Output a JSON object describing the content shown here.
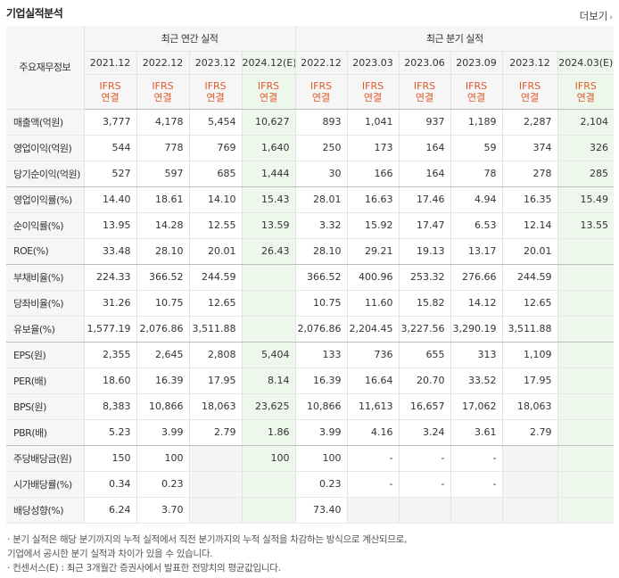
{
  "section_title": "기업실적분석",
  "more_label": "더보기",
  "corner_label": "주요재무정보",
  "groups": [
    "최근 연간 실적",
    "최근 분기 실적"
  ],
  "periods": [
    "2021.12",
    "2022.12",
    "2023.12",
    "2024.12(E)",
    "2022.12",
    "2023.03",
    "2023.06",
    "2023.09",
    "2023.12",
    "2024.03(E)"
  ],
  "ifrs_line1": "IFRS",
  "ifrs_line2": "연결",
  "rows": [
    {
      "label": "매출액(억원)",
      "values": [
        "3,777",
        "4,178",
        "5,454",
        "10,627",
        "893",
        "1,041",
        "937",
        "1,189",
        "2,287",
        "2,104"
      ]
    },
    {
      "label": "영업이익(억원)",
      "values": [
        "544",
        "778",
        "769",
        "1,640",
        "250",
        "173",
        "164",
        "59",
        "374",
        "326"
      ]
    },
    {
      "label": "당기순이익(억원)",
      "values": [
        "527",
        "597",
        "685",
        "1,444",
        "30",
        "166",
        "164",
        "78",
        "278",
        "285"
      ]
    },
    {
      "label": "영업이익률(%)",
      "values": [
        "14.40",
        "18.61",
        "14.10",
        "15.43",
        "28.01",
        "16.63",
        "17.46",
        "4.94",
        "16.35",
        "15.49"
      ]
    },
    {
      "label": "순이익률(%)",
      "values": [
        "13.95",
        "14.28",
        "12.55",
        "13.59",
        "3.32",
        "15.92",
        "17.47",
        "6.53",
        "12.14",
        "13.55"
      ]
    },
    {
      "label": "ROE(%)",
      "values": [
        "33.48",
        "28.10",
        "20.01",
        "26.43",
        "28.10",
        "29.21",
        "19.13",
        "13.17",
        "20.01",
        ""
      ]
    },
    {
      "label": "부채비율(%)",
      "values": [
        "224.33",
        "366.52",
        "244.59",
        "",
        "366.52",
        "400.96",
        "253.32",
        "276.66",
        "244.59",
        ""
      ]
    },
    {
      "label": "당좌비율(%)",
      "values": [
        "31.26",
        "10.75",
        "12.65",
        "",
        "10.75",
        "11.60",
        "15.82",
        "14.12",
        "12.65",
        ""
      ]
    },
    {
      "label": "유보율(%)",
      "values": [
        "1,577.19",
        "2,076.86",
        "3,511.88",
        "",
        "2,076.86",
        "2,204.45",
        "3,227.56",
        "3,290.19",
        "3,511.88",
        ""
      ]
    },
    {
      "label": "EPS(원)",
      "values": [
        "2,355",
        "2,645",
        "2,808",
        "5,404",
        "133",
        "736",
        "655",
        "313",
        "1,109",
        ""
      ]
    },
    {
      "label": "PER(배)",
      "values": [
        "18.60",
        "16.39",
        "17.95",
        "8.14",
        "16.39",
        "16.64",
        "20.70",
        "33.52",
        "17.95",
        ""
      ]
    },
    {
      "label": "BPS(원)",
      "values": [
        "8,383",
        "10,866",
        "18,063",
        "23,625",
        "10,866",
        "11,613",
        "16,657",
        "17,062",
        "18,063",
        ""
      ]
    },
    {
      "label": "PBR(배)",
      "values": [
        "5.23",
        "3.99",
        "2.79",
        "1.86",
        "3.99",
        "4.16",
        "3.24",
        "3.61",
        "2.79",
        ""
      ]
    },
    {
      "label": "주당배당금(원)",
      "values": [
        "150",
        "100",
        "",
        "100",
        "100",
        "-",
        "-",
        "-",
        "",
        ""
      ]
    },
    {
      "label": "시가배당률(%)",
      "values": [
        "0.34",
        "0.23",
        "",
        "",
        "0.23",
        "-",
        "-",
        "-",
        "",
        ""
      ]
    },
    {
      "label": "배당성향(%)",
      "values": [
        "6.24",
        "3.70",
        "",
        "",
        "73.40",
        "",
        "",
        "",
        "",
        ""
      ]
    }
  ],
  "footnotes": [
    "· 분기 실적은 해당 분기까지의 누적 실적에서 직전 분기까지의 누적 실적을 차감하는 방식으로 계산되므로,",
    "  기업에서 공시한 분기 실적과 차이가 있을 수 있습니다.",
    "· 컨센서스(E) : 최근 3개월간 증권사에서 발표한 전망치의 평균값입니다."
  ],
  "colors": {
    "ifrs": "#e0592a",
    "estimate_bg": "#eef7ec",
    "header_bg": "#f6f6f6"
  }
}
